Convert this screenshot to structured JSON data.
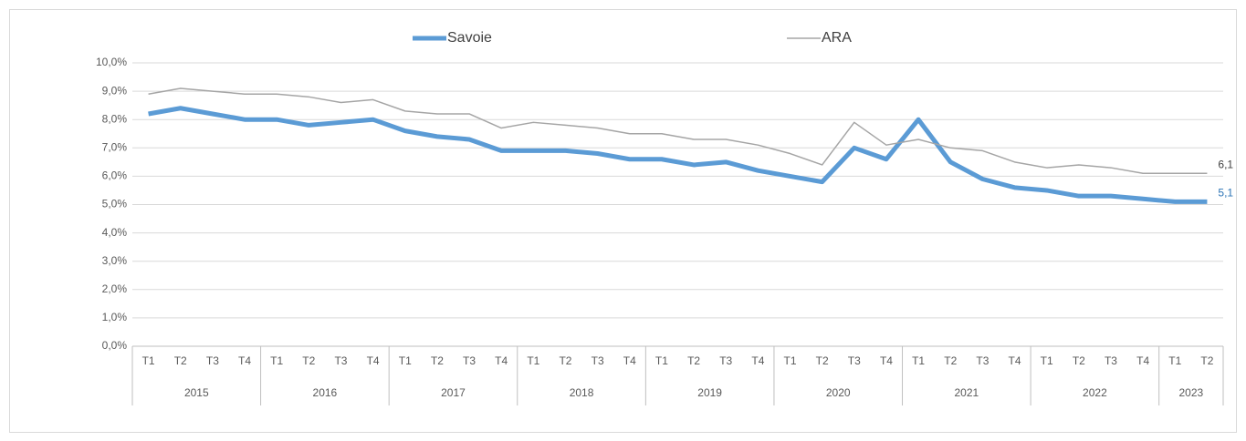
{
  "chart_data": {
    "type": "line",
    "groups": [
      {
        "label": "2015",
        "categories": [
          "T1",
          "T2",
          "T3",
          "T4"
        ]
      },
      {
        "label": "2016",
        "categories": [
          "T1",
          "T2",
          "T3",
          "T4"
        ]
      },
      {
        "label": "2017",
        "categories": [
          "T1",
          "T2",
          "T3",
          "T4"
        ]
      },
      {
        "label": "2018",
        "categories": [
          "T1",
          "T2",
          "T3",
          "T4"
        ]
      },
      {
        "label": "2019",
        "categories": [
          "T1",
          "T2",
          "T3",
          "T4"
        ]
      },
      {
        "label": "2020",
        "categories": [
          "T1",
          "T2",
          "T3",
          "T4"
        ]
      },
      {
        "label": "2021",
        "categories": [
          "T1",
          "T2",
          "T3",
          "T4"
        ]
      },
      {
        "label": "2022",
        "categories": [
          "T1",
          "T2",
          "T3",
          "T4"
        ]
      },
      {
        "label": "2023",
        "categories": [
          "T1",
          "T2"
        ]
      }
    ],
    "series": [
      {
        "name": "Savoie",
        "color": "#5b9bd5",
        "width": 5,
        "values": [
          8.2,
          8.4,
          8.2,
          8.0,
          8.0,
          7.8,
          7.9,
          8.0,
          7.6,
          7.4,
          7.3,
          6.9,
          6.9,
          6.9,
          6.8,
          6.6,
          6.6,
          6.4,
          6.5,
          6.2,
          6.0,
          5.8,
          7.0,
          6.6,
          8.0,
          6.5,
          5.9,
          5.6,
          5.5,
          5.3,
          5.3,
          5.2,
          5.1,
          5.1
        ],
        "value_labels": [
          null,
          null,
          null,
          null,
          null,
          null,
          null,
          null,
          null,
          null,
          null,
          null,
          null,
          null,
          null,
          null,
          null,
          null,
          null,
          null,
          null,
          null,
          null,
          null,
          null,
          null,
          null,
          null,
          null,
          null,
          null,
          null,
          null,
          "5,1"
        ],
        "label_color": "#2e75b6"
      },
      {
        "name": "ARA",
        "color": "#a5a5a5",
        "width": 1.5,
        "values": [
          8.9,
          9.1,
          9.0,
          8.9,
          8.9,
          8.8,
          8.6,
          8.7,
          8.3,
          8.2,
          8.2,
          7.7,
          7.9,
          7.8,
          7.7,
          7.5,
          7.5,
          7.3,
          7.3,
          7.1,
          6.8,
          6.4,
          7.9,
          7.1,
          7.3,
          7.0,
          6.9,
          6.5,
          6.3,
          6.4,
          6.3,
          6.1,
          6.1,
          6.1
        ],
        "value_labels": [
          null,
          null,
          null,
          null,
          null,
          null,
          null,
          null,
          null,
          null,
          null,
          null,
          null,
          null,
          null,
          null,
          null,
          null,
          null,
          null,
          null,
          null,
          null,
          null,
          null,
          null,
          null,
          null,
          null,
          null,
          null,
          null,
          null,
          "6,1"
        ],
        "label_color": "#404040"
      }
    ],
    "ylim": [
      0,
      10
    ],
    "yticks": [
      {
        "value": 0,
        "label": "0,0%"
      },
      {
        "value": 1,
        "label": "1,0%"
      },
      {
        "value": 2,
        "label": "2,0%"
      },
      {
        "value": 3,
        "label": "3,0%"
      },
      {
        "value": 4,
        "label": "4,0%"
      },
      {
        "value": 5,
        "label": "5,0%"
      },
      {
        "value": 6,
        "label": "6,0%"
      },
      {
        "value": 7,
        "label": "7,0%"
      },
      {
        "value": 8,
        "label": "8,0%"
      },
      {
        "value": 9,
        "label": "9,0%"
      },
      {
        "value": 10,
        "label": "10,0%"
      }
    ],
    "grid": true,
    "legend": "top"
  }
}
